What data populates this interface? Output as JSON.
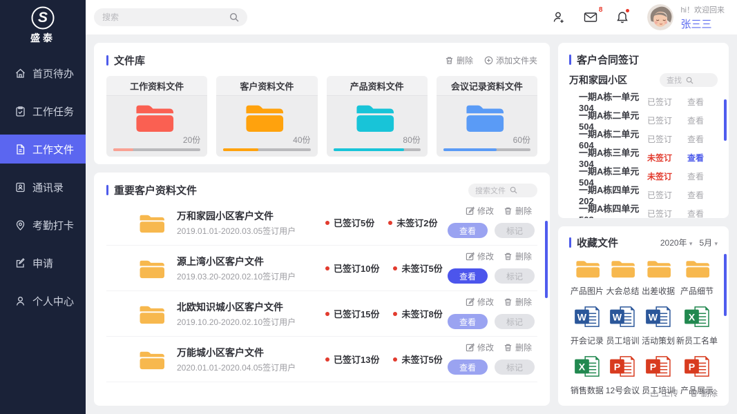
{
  "brand": {
    "initial": "S",
    "name": "盛泰"
  },
  "topbar": {
    "search_placeholder": "搜索",
    "mail_badge": "8",
    "greeting": "hi！欢迎回来",
    "username": "张三三"
  },
  "sidebar": {
    "items": [
      {
        "label": "首页待办",
        "icon": "home",
        "active": false
      },
      {
        "label": "工作任务",
        "icon": "tasks",
        "active": false
      },
      {
        "label": "工作文件",
        "icon": "document",
        "active": true
      },
      {
        "label": "通讯录",
        "icon": "contacts",
        "active": false
      },
      {
        "label": "考勤打卡",
        "icon": "location",
        "active": false
      },
      {
        "label": "申请",
        "icon": "apply",
        "active": false
      },
      {
        "label": "个人中心",
        "icon": "user",
        "active": false
      }
    ]
  },
  "library": {
    "title": "文件库",
    "delete_label": "删除",
    "add_label": "添加文件夹",
    "folders": [
      {
        "name": "工作资料文件",
        "count": "20份",
        "folder_color": "#fa6052",
        "bar_color": "#f9a193",
        "progress": 23
      },
      {
        "name": "客户资料文件",
        "count": "40份",
        "folder_color": "#ffa20d",
        "bar_color": "#ffa20d",
        "progress": 40
      },
      {
        "name": "产品资料文件",
        "count": "80份",
        "folder_color": "#18c4d8",
        "bar_color": "#18c4d8",
        "progress": 81
      },
      {
        "name": "会议记录资料文件",
        "count": "60份",
        "folder_color": "#5a9bf6",
        "bar_color": "#5a9bf6",
        "progress": 61
      }
    ]
  },
  "important": {
    "title": "重要客户资料文件",
    "search_placeholder": "搜索文件",
    "modify_label": "修改",
    "delete_label": "删除",
    "view_label": "查看",
    "mark_label": "标记",
    "items": [
      {
        "name": "万和家园小区客户文件",
        "period": "2019.01.01-2020.03.05签订用户",
        "signed": "已签订5份",
        "unsigned": "未签订2份",
        "view_solid": false
      },
      {
        "name": "源上湾小区客户文件",
        "period": "2019.03.20-2020.02.10签订用户",
        "signed": "已签订10份",
        "unsigned": "未签订5份",
        "view_solid": true
      },
      {
        "name": "北欧知识城小区客户文件",
        "period": "2019.10.20-2020.02.10签订用户",
        "signed": "已签订15份",
        "unsigned": "未签订8份",
        "view_solid": false
      },
      {
        "name": "万能城小区客户文件",
        "period": "2020.01.01-2020.04.05签订用户",
        "signed": "已签订13份",
        "unsigned": "未签订5份",
        "view_solid": false
      }
    ]
  },
  "contracts": {
    "title": "客户合同签订",
    "subtitle": "万和家园小区",
    "search_label": "查找",
    "view_label": "查看",
    "rows": [
      {
        "unit": "一期A栋一单元304",
        "status": "已签订",
        "signed": true,
        "view_highlight": false
      },
      {
        "unit": "一期A栋二单元504",
        "status": "已签订",
        "signed": true,
        "view_highlight": false
      },
      {
        "unit": "一期A栋二单元604",
        "status": "已签订",
        "signed": true,
        "view_highlight": false
      },
      {
        "unit": "一期A栋三单元304",
        "status": "未签订",
        "signed": false,
        "view_highlight": true
      },
      {
        "unit": "一期A栋三单元504",
        "status": "未签订",
        "signed": false,
        "view_highlight": false
      },
      {
        "unit": "一期A栋四单元202",
        "status": "已签订",
        "signed": true,
        "view_highlight": false
      },
      {
        "unit": "一期A栋四单元503",
        "status": "已签订",
        "signed": true,
        "view_highlight": false
      }
    ]
  },
  "favorites": {
    "title": "收藏文件",
    "year": "2020年",
    "month": "5月",
    "upload_label": "上传",
    "delete_label": "删除",
    "files": [
      {
        "name": "产品图片",
        "type": "folder"
      },
      {
        "name": "大会总结",
        "type": "folder"
      },
      {
        "name": "出差收据",
        "type": "folder"
      },
      {
        "name": "产品细节",
        "type": "folder"
      },
      {
        "name": "开会记录",
        "type": "word"
      },
      {
        "name": "员工培训",
        "type": "word"
      },
      {
        "name": "活动策划",
        "type": "word"
      },
      {
        "name": "新员工名单",
        "type": "excel"
      },
      {
        "name": "销售数据",
        "type": "excel"
      },
      {
        "name": "12号会议",
        "type": "ppt"
      },
      {
        "name": "员工培训",
        "type": "ppt"
      },
      {
        "name": "产品展示",
        "type": "ppt"
      }
    ]
  },
  "colors": {
    "accent": "#5b66f0",
    "link": "#4d5bea",
    "danger": "#e23b2e",
    "folder_yellow": "#f7b84e"
  }
}
